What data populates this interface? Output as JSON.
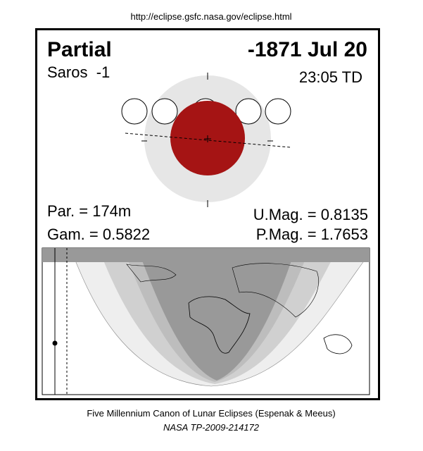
{
  "header": {
    "url": "http://eclipse.gsfc.nasa.gov/eclipse.html"
  },
  "panel": {
    "type": "Partial",
    "date": "-1871 Jul 20",
    "saros": "Saros  -1",
    "time": "23:05 TD",
    "stats": {
      "par": "Par. = 174m",
      "gam": "Gam. = 0.5822",
      "umag": "U.Mag. = 0.8135",
      "pmag": "P.Mag. = 1.7653"
    }
  },
  "footer": {
    "canon": "Five Millennium Canon of Lunar Eclipses (Espenak & Meeus)",
    "ref": "NASA TP-2009-214172"
  }
}
